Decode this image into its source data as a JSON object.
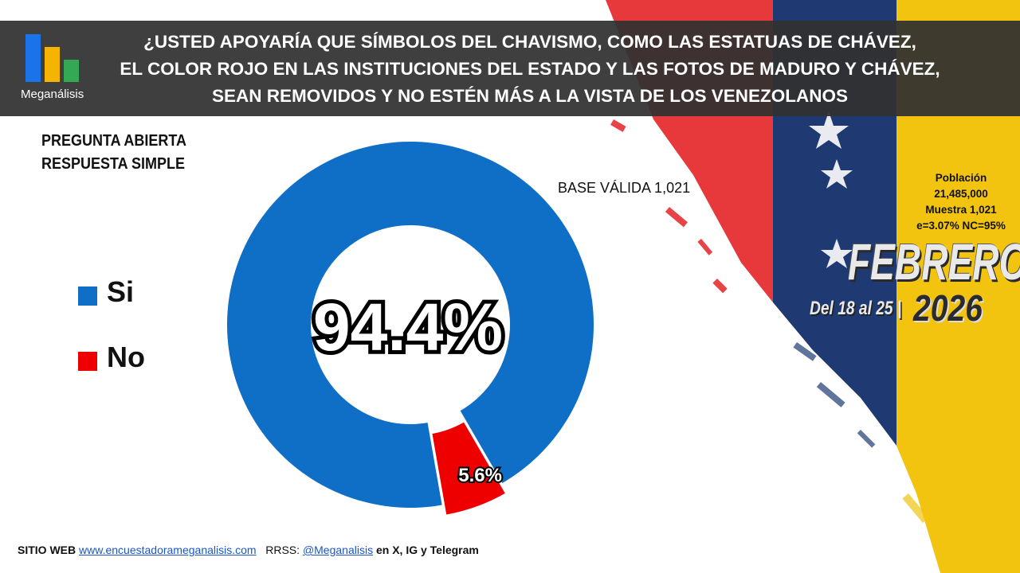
{
  "header": {
    "logo_text": "Meganálisis",
    "title_lines": [
      "¿USTED APOYARÍA QUE SÍMBOLOS DEL CHAVISMO, COMO LAS ESTATUAS DE CHÁVEZ,",
      "EL COLOR ROJO EN LAS INSTITUCIONES DEL ESTADO Y LAS FOTOS DE MADURO Y CHÁVEZ,",
      "SEAN REMOVIDOS Y NO ESTÉN MÁS A LA VISTA DE LOS VENEZOLANOS"
    ]
  },
  "question_type": [
    "PREGUNTA  ABIERTA",
    "RESPUESTA SIMPLE"
  ],
  "base_valida": "BASE VÁLIDA 1,021",
  "sample": {
    "poblacion_label": "Población",
    "poblacion_value": "21,485,000",
    "muestra": "Muestra 1,021",
    "error": "e=3.07%  NC=95%"
  },
  "date": {
    "month": "FEBRERO",
    "range": "Del 18 al 25 |",
    "year": "2026"
  },
  "colors": {
    "si": "#0f6fc6",
    "no": "#ee0000"
  },
  "chart_data": {
    "type": "pie",
    "donut": true,
    "categories": [
      "Si",
      "No"
    ],
    "values": [
      94.4,
      5.6
    ],
    "data_labels": [
      "94.4%",
      "5.6%"
    ],
    "legend_position": "left"
  },
  "footer": {
    "site_label": "SITIO WEB",
    "site_url": "www.encuestadorameganalisis.com",
    "rrss_label": "RRSS:",
    "handle": "@Meganalisis",
    "networks": "en X, IG y Telegram"
  }
}
